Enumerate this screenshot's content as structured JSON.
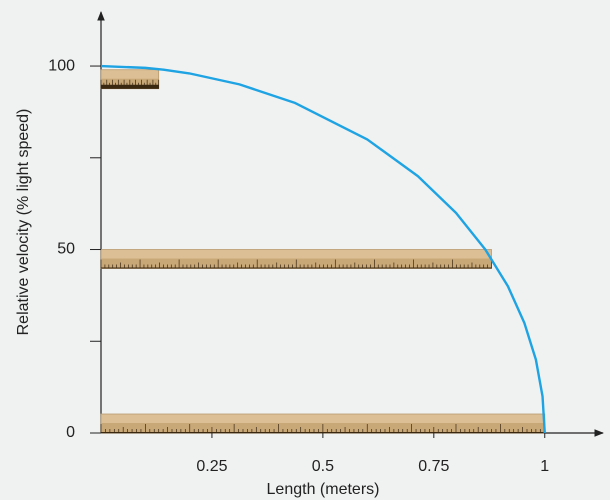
{
  "chart_data": {
    "type": "line",
    "xlabel": "Length (meters)",
    "ylabel": "Relative velocity (% light speed)",
    "x": [
      1,
      0.995,
      0.98,
      0.954,
      0.917,
      0.866,
      0.8,
      0.714,
      0.6,
      0.436,
      0.312,
      0.199,
      0.141,
      0.1,
      0
    ],
    "values": [
      0,
      10,
      20,
      30,
      40,
      50,
      60,
      70,
      80,
      90,
      95,
      98,
      99,
      99.5,
      100
    ],
    "color": "#1ea3e3",
    "rulers": [
      {
        "velocity": 0,
        "length": 1
      },
      {
        "velocity": 50,
        "length": 0.88
      },
      {
        "velocity": 99,
        "length": 0.13
      }
    ],
    "ruler_color": "#dcbf95",
    "xlim": [
      0,
      1.12
    ],
    "ylim": [
      0,
      115
    ],
    "xticks": [
      0.25,
      0.5,
      0.75,
      1
    ],
    "yticks": [
      0,
      50,
      100
    ],
    "y_minor_ticks": [
      25,
      75
    ]
  }
}
